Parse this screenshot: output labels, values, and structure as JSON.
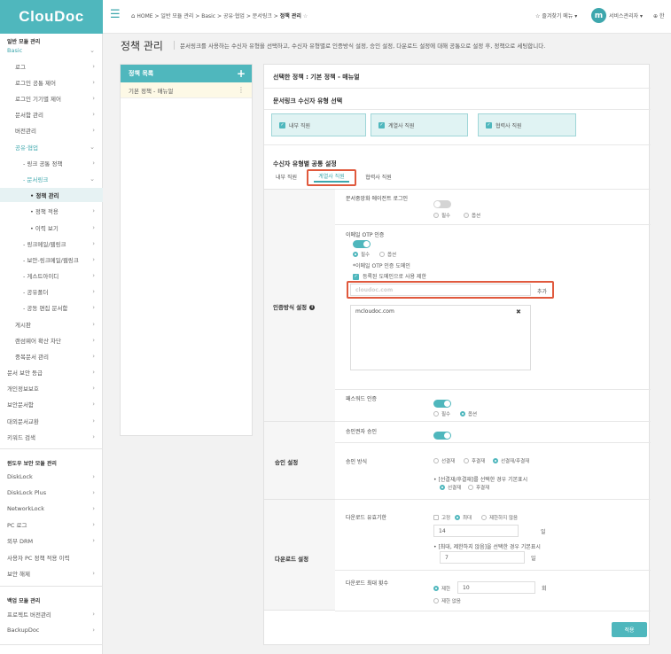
{
  "app": {
    "logo": "ClouDoc"
  },
  "topbar": {
    "breadcrumb": [
      "HOME",
      "일반 모듈 관리",
      "Basic",
      "공유·협업",
      "문서링크",
      "정책 관리"
    ],
    "favorites": "즐겨찾기 메뉴",
    "user_initial": "m",
    "user_name": "서비스관리자",
    "language": "한"
  },
  "sidebar": {
    "items": [
      {
        "label": "일반 모듈 관리",
        "type": "section"
      },
      {
        "label": "Basic",
        "chev": "⌄",
        "type": "teal"
      },
      {
        "label": "로그",
        "chev": "›"
      },
      {
        "label": "로그인 공통 제어",
        "chev": "›"
      },
      {
        "label": "로그인 기기별 제어",
        "chev": "›"
      },
      {
        "label": "문서함 관리",
        "chev": "›"
      },
      {
        "label": "버전관리",
        "chev": "›"
      },
      {
        "label": "공유·협업",
        "chev": "⌄",
        "type": "teal"
      },
      {
        "label": "- 링크 공통 정책",
        "chev": "›"
      },
      {
        "label": "- 문서링크",
        "chev": "⌄",
        "type": "teal"
      },
      {
        "label": "• 정책 관리",
        "type": "active"
      },
      {
        "label": "• 정책 적용",
        "chev": "›"
      },
      {
        "label": "• 이력 보기",
        "chev": "›"
      },
      {
        "label": "- 링크메일/웹링크",
        "chev": "›"
      },
      {
        "label": "- 보안-링크메일/웹링크",
        "chev": "›"
      },
      {
        "label": "- 게스트아이디",
        "chev": "›"
      },
      {
        "label": "- 공유폴더",
        "chev": "›"
      },
      {
        "label": "- 공동 편집 문서함",
        "chev": "›"
      },
      {
        "label": "게시판",
        "chev": "›"
      },
      {
        "label": "랜섬웨어 확산 차단",
        "chev": "›"
      },
      {
        "label": "중복문서 관리",
        "chev": "›"
      },
      {
        "label": "문서 보안 등급",
        "chev": "›"
      },
      {
        "label": "개인정보보호",
        "chev": "›"
      },
      {
        "label": "보안문서함",
        "chev": "›"
      },
      {
        "label": "대외문서교환",
        "chev": "›"
      },
      {
        "label": "키워드 검색",
        "chev": "›"
      },
      {
        "label": "윈도우 보안 모듈 관리",
        "type": "section"
      },
      {
        "label": "DiskLock",
        "chev": "›"
      },
      {
        "label": "DiskLock Plus",
        "chev": "›"
      },
      {
        "label": "NetworkLock",
        "chev": "›"
      },
      {
        "label": "PC 로그",
        "chev": "›"
      },
      {
        "label": "외부 DRM",
        "chev": "›"
      },
      {
        "label": "사용자 PC 정책 적용 이력",
        "chev": ""
      },
      {
        "label": "보안 해제",
        "chev": "›"
      },
      {
        "label": "백업 모듈 관리",
        "type": "section"
      },
      {
        "label": "프로젝트 버전관리",
        "chev": "›"
      },
      {
        "label": "BackupDoc",
        "chev": "›"
      }
    ]
  },
  "page": {
    "title": "정책 관리",
    "description": "문서링크를 사용하는 수신자 유형을 선택하고, 수신자 유형별로 인증방식 설정, 승인 설정, 다운로드 설정에 대해 공통으로 설정 후, 정책으로 세팅합니다."
  },
  "policy_list": {
    "header": "정책 목록",
    "add_icon": "+",
    "items": [
      {
        "label": "기본 정책 - 매뉴얼",
        "more": "⋮"
      }
    ]
  },
  "panel": {
    "selected_policy": "선택한 정책 : 기본 정책 - 매뉴얼",
    "recipient_type_title": "문서링크 수신자 유형 선택",
    "recipient_types": [
      "내부 직원",
      "계열사 직원",
      "협력사 직원"
    ],
    "common_settings_title": "수신자 유형별 공통 설정",
    "tabs": [
      "내부 직원",
      "계열사 직원",
      "협력사 직원"
    ],
    "auth": {
      "label": "인증방식 설정",
      "info_icon": "i",
      "agent_login": {
        "label": "문서중앙화 에이전트 로그인",
        "options": [
          "필수",
          "옵션"
        ]
      },
      "email_otp": {
        "label": "이메일 OTP 인증",
        "options": [
          "필수",
          "옵션"
        ],
        "domain_label": "*이메일 OTP 인증 도메인",
        "restrict_label": "등록된 도메인으로 사용 제한",
        "domain_placeholder": "cloudoc.com",
        "add_button": "추가",
        "domains": [
          "mcloudoc.com"
        ],
        "remove_icon": "✖"
      },
      "password": {
        "label": "패스워드 인증",
        "options": [
          "필수",
          "옵션"
        ]
      }
    },
    "approval": {
      "label": "승인 설정",
      "approver_label": "승인권자 승인",
      "method_label": "승인 방식",
      "methods": [
        "선결재",
        "후결재",
        "선결재/후결재"
      ],
      "note": "• [선결재/후결재]를 선택한 경우 기본표시",
      "default_options": [
        "선결재",
        "후결재"
      ]
    },
    "download": {
      "label": "다운로드 설정",
      "period_label": "다운로드 유효기한",
      "period_options": [
        "고정",
        "최대",
        "제한하지 않음"
      ],
      "period_value": "14",
      "period_unit": "일",
      "note": "• [최대, 제한하지 않음]을 선택한 경우 기본표시",
      "default_value": "7",
      "default_unit": "일",
      "max_label": "다운로드 최대 횟수",
      "limit_option": "제한",
      "limit_value": "10",
      "limit_unit": "회",
      "no_limit_option": "제한 없음"
    },
    "apply_button": "적용"
  }
}
